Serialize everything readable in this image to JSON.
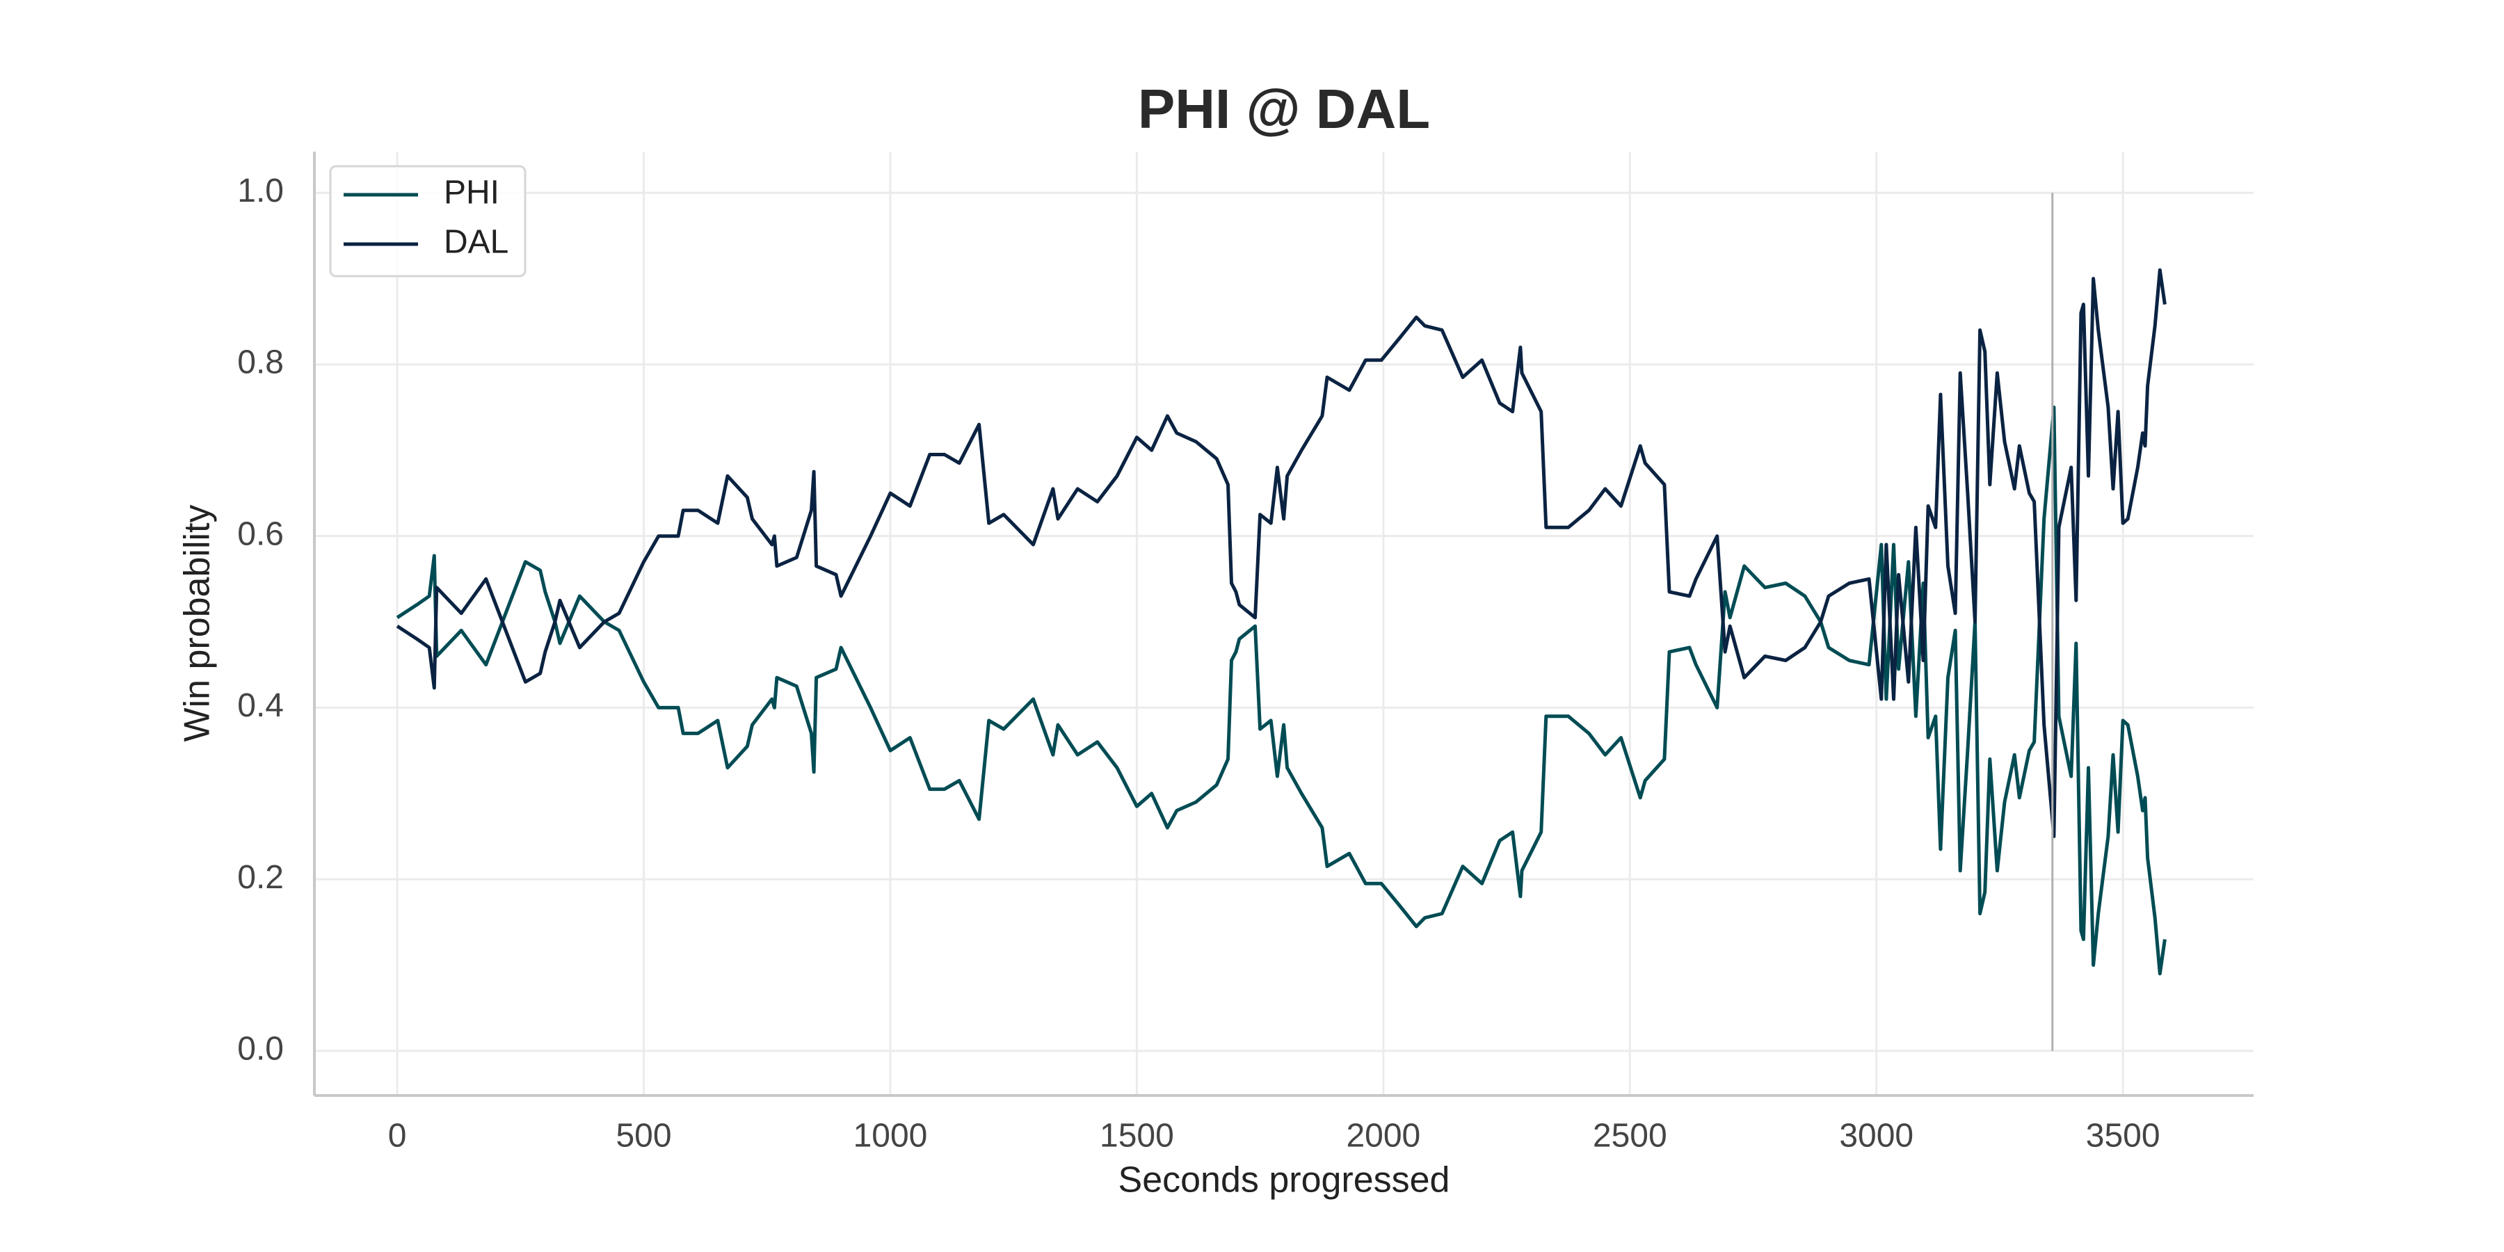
{
  "chart_data": {
    "type": "line",
    "title": "PHI @ DAL",
    "x_label": "Seconds progressed",
    "y_label": "Win probability",
    "xlim": [
      -168,
      3765
    ],
    "ylim": [
      -0.052,
      1.048
    ],
    "xticks": [
      0,
      500,
      1000,
      1500,
      2000,
      2500,
      3000,
      3500
    ],
    "yticks": [
      {
        "value": 0,
        "label": "0.0"
      },
      0.2,
      0.4,
      0.6,
      0.8,
      {
        "value": 1,
        "label": "1.0"
      }
    ],
    "grid": true,
    "legend": "upper left",
    "vline": {
      "x": 3357,
      "ymin": 0,
      "ymax": 1,
      "color": "#b0b0b0"
    },
    "x": [
      0,
      40,
      65,
      75,
      80,
      130,
      180,
      260,
      290,
      300,
      320,
      330,
      370,
      420,
      450,
      500,
      530,
      570,
      580,
      610,
      650,
      670,
      710,
      720,
      760,
      765,
      770,
      810,
      840,
      845,
      850,
      890,
      900,
      960,
      1000,
      1040,
      1080,
      1110,
      1140,
      1180,
      1200,
      1230,
      1290,
      1330,
      1340,
      1380,
      1420,
      1460,
      1500,
      1530,
      1562,
      1581,
      1620,
      1662,
      1685,
      1692,
      1701,
      1708,
      1740,
      1750,
      1772,
      1785,
      1798,
      1805,
      1834,
      1876,
      1886,
      1931,
      1964,
      1996,
      2032,
      2067,
      2084,
      2119,
      2161,
      2200,
      2236,
      2262,
      2278,
      2281,
      2320,
      2330,
      2375,
      2417,
      2450,
      2482,
      2521,
      2531,
      2570,
      2580,
      2621,
      2634,
      2677,
      2693,
      2703,
      2732,
      2774,
      2816,
      2855,
      2887,
      2903,
      2945,
      2985,
      3010,
      3020,
      3035,
      3045,
      3065,
      3080,
      3095,
      3105,
      3120,
      3130,
      3145,
      3160,
      3170,
      3185,
      3200,
      3210,
      3220,
      3230,
      3245,
      3260,
      3280,
      3290,
      3310,
      3320,
      3340,
      3360,
      3370,
      3395,
      3405,
      3415,
      3420,
      3430,
      3440,
      3450,
      3470,
      3480,
      3490,
      3500,
      3510,
      3530,
      3540,
      3545,
      3550,
      3565,
      3575,
      3585
    ],
    "series": [
      {
        "name": "PHI",
        "color": "#004c54",
        "values": [
          0.505,
          0.52,
          0.53,
          0.577,
          0.46,
          0.49,
          0.45,
          0.57,
          0.56,
          0.535,
          0.5,
          0.475,
          0.53,
          0.5,
          0.49,
          0.43,
          0.4,
          0.4,
          0.37,
          0.37,
          0.385,
          0.33,
          0.355,
          0.38,
          0.41,
          0.4,
          0.435,
          0.425,
          0.37,
          0.325,
          0.435,
          0.445,
          0.47,
          0.4,
          0.35,
          0.365,
          0.305,
          0.305,
          0.315,
          0.27,
          0.385,
          0.375,
          0.41,
          0.345,
          0.38,
          0.345,
          0.36,
          0.33,
          0.285,
          0.3,
          0.26,
          0.28,
          0.29,
          0.31,
          0.34,
          0.455,
          0.465,
          0.48,
          0.495,
          0.375,
          0.385,
          0.32,
          0.38,
          0.33,
          0.3,
          0.26,
          0.215,
          0.23,
          0.195,
          0.195,
          0.17,
          0.145,
          0.155,
          0.16,
          0.215,
          0.195,
          0.245,
          0.255,
          0.18,
          0.21,
          0.255,
          0.39,
          0.39,
          0.37,
          0.345,
          0.365,
          0.295,
          0.315,
          0.34,
          0.465,
          0.47,
          0.45,
          0.4,
          0.535,
          0.505,
          0.565,
          0.54,
          0.545,
          0.53,
          0.5,
          0.47,
          0.455,
          0.45,
          0.59,
          0.41,
          0.59,
          0.445,
          0.57,
          0.39,
          0.545,
          0.365,
          0.39,
          0.235,
          0.435,
          0.49,
          0.21,
          0.35,
          0.5,
          0.16,
          0.185,
          0.34,
          0.21,
          0.29,
          0.345,
          0.295,
          0.35,
          0.36,
          0.62,
          0.75,
          0.39,
          0.32,
          0.475,
          0.14,
          0.13,
          0.33,
          0.1,
          0.16,
          0.25,
          0.345,
          0.255,
          0.385,
          0.38,
          0.32,
          0.28,
          0.295,
          0.225,
          0.155,
          0.09,
          0.13
        ]
      },
      {
        "name": "DAL",
        "color": "#0b2342",
        "values": [
          0.495,
          0.48,
          0.47,
          0.423,
          0.54,
          0.51,
          0.55,
          0.43,
          0.44,
          0.465,
          0.5,
          0.525,
          0.47,
          0.5,
          0.51,
          0.57,
          0.6,
          0.6,
          0.63,
          0.63,
          0.615,
          0.67,
          0.645,
          0.62,
          0.59,
          0.6,
          0.565,
          0.575,
          0.63,
          0.675,
          0.565,
          0.555,
          0.53,
          0.6,
          0.65,
          0.635,
          0.695,
          0.695,
          0.685,
          0.73,
          0.615,
          0.625,
          0.59,
          0.655,
          0.62,
          0.655,
          0.64,
          0.67,
          0.715,
          0.7,
          0.74,
          0.72,
          0.71,
          0.69,
          0.66,
          0.545,
          0.535,
          0.52,
          0.505,
          0.625,
          0.615,
          0.68,
          0.62,
          0.67,
          0.7,
          0.74,
          0.785,
          0.77,
          0.805,
          0.805,
          0.83,
          0.855,
          0.845,
          0.84,
          0.785,
          0.805,
          0.755,
          0.745,
          0.82,
          0.79,
          0.745,
          0.61,
          0.61,
          0.63,
          0.655,
          0.635,
          0.705,
          0.685,
          0.66,
          0.535,
          0.53,
          0.55,
          0.6,
          0.465,
          0.495,
          0.435,
          0.46,
          0.455,
          0.47,
          0.5,
          0.53,
          0.545,
          0.55,
          0.41,
          0.59,
          0.41,
          0.555,
          0.43,
          0.61,
          0.455,
          0.635,
          0.61,
          0.765,
          0.565,
          0.51,
          0.79,
          0.65,
          0.5,
          0.84,
          0.815,
          0.66,
          0.79,
          0.71,
          0.655,
          0.705,
          0.65,
          0.64,
          0.38,
          0.25,
          0.61,
          0.68,
          0.525,
          0.86,
          0.87,
          0.67,
          0.9,
          0.84,
          0.75,
          0.655,
          0.745,
          0.615,
          0.62,
          0.68,
          0.72,
          0.705,
          0.775,
          0.845,
          0.91,
          0.87
        ]
      }
    ]
  }
}
